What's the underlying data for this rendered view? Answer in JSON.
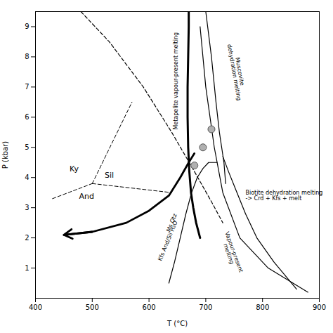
{
  "chart_data": {
    "type": "line",
    "xlabel": "T (°C)",
    "ylabel": "P (kbar)",
    "xlim": [
      400,
      900
    ],
    "ylim": [
      0,
      9.5
    ],
    "xticks": [
      400,
      500,
      600,
      700,
      800,
      900
    ],
    "yticks": [
      1,
      2,
      3,
      4,
      5,
      6,
      7,
      8,
      9
    ],
    "grid": false,
    "series": [
      {
        "x": [
          500,
          570
        ],
        "values": [
          3.8,
          6.5
        ],
        "color": "#000000",
        "line_style": "dashed"
      },
      {
        "x": [
          500,
          640
        ],
        "values": [
          3.8,
          3.5
        ],
        "color": "#000000",
        "line_style": "dashed"
      },
      {
        "x": [
          430,
          500
        ],
        "values": [
          3.3,
          3.8
        ],
        "color": "#000000",
        "line_style": "dashed"
      },
      {
        "x": [
          480,
          530,
          590,
          640,
          680,
          710,
          730
        ],
        "values": [
          9.5,
          8.5,
          7.0,
          5.5,
          4.2,
          3.2,
          2.5
        ],
        "color": "#000000",
        "line_style": "dashed"
      },
      {
        "x": [
          635,
          645,
          655,
          665,
          675,
          685,
          695,
          705,
          720
        ],
        "values": [
          0.5,
          1.2,
          2.0,
          2.8,
          3.5,
          4.0,
          4.3,
          4.5,
          4.5
        ],
        "color": "#000000",
        "line_style": "solid"
      },
      {
        "x": [
          670,
          670,
          669,
          668,
          668,
          669,
          671,
          674,
          678,
          683,
          690
        ],
        "values": [
          9.5,
          9.0,
          8.0,
          7.0,
          6.0,
          5.0,
          4.2,
          3.5,
          3.0,
          2.5,
          2.0
        ],
        "color": "#000000",
        "line_style": "solid"
      },
      {
        "x": [
          700,
          710,
          718,
          724,
          728,
          732,
          735
        ],
        "values": [
          9.5,
          8.0,
          6.5,
          5.5,
          5.0,
          4.5,
          3.8
        ],
        "color": "#000000",
        "line_style": "solid"
      },
      {
        "x": [
          730,
          740,
          755,
          770,
          790,
          820,
          860
        ],
        "values": [
          4.7,
          4.2,
          3.5,
          2.8,
          2.0,
          1.2,
          0.3
        ],
        "color": "#000000",
        "line_style": "solid"
      },
      {
        "x": [
          690,
          700,
          715,
          730,
          760,
          810,
          880
        ],
        "values": [
          9.0,
          7.0,
          5.0,
          3.5,
          2.0,
          1.0,
          0.2
        ],
        "color": "#000000",
        "line_style": "solid"
      },
      {
        "type": "arrow",
        "x": [
          680,
          670,
          655,
          635,
          600,
          560,
          500,
          450
        ],
        "values": [
          4.8,
          4.5,
          4.0,
          3.4,
          2.9,
          2.5,
          2.2,
          2.1
        ],
        "color": "#000000",
        "line_style": "solid"
      },
      {
        "type": "scatter",
        "x": [
          710,
          695,
          680
        ],
        "values": [
          5.6,
          5.0,
          4.4
        ],
        "color": "#b0b0b0",
        "marker": "circle"
      }
    ],
    "annotations": [
      {
        "text": "Ky",
        "x": 468,
        "y": 4.2
      },
      {
        "text": "Sil",
        "x": 530,
        "y": 4.0
      },
      {
        "text": "And",
        "x": 490,
        "y": 3.3
      },
      {
        "text": "Metapelite vapour-present melting",
        "x": 648,
        "y": 7.2
      },
      {
        "text": "Muscovite\ndehydration melting",
        "x": 755,
        "y": 7.5
      },
      {
        "text": "Biotite dehydration melting\n-> Crd + Kfs + melt",
        "x": 770,
        "y": 3.4
      },
      {
        "text": "Vapour-present\nmelting",
        "x": 745,
        "y": 1.5
      },
      {
        "text": "Ms Qtz",
        "x": 640,
        "y": 2.5
      },
      {
        "text": "Kfs And/Sil H₂O",
        "x": 633,
        "y": 1.9
      }
    ]
  }
}
